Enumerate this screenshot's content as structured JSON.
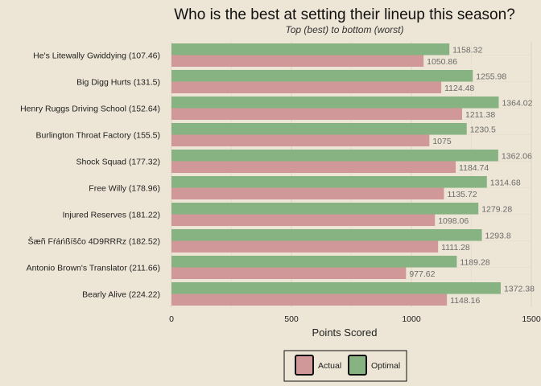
{
  "chart_data": {
    "type": "bar",
    "orientation": "horizontal",
    "title": "Who is the best at setting their lineup this season?",
    "subtitle": "Top (best) to bottom (worst)",
    "xlabel": "Points Scored",
    "ylabel": "",
    "xlim": [
      0,
      1500
    ],
    "xticks": [
      0,
      500,
      1000,
      1500
    ],
    "grid": true,
    "legend_position": "bottom",
    "categories": [
      "He's Litewally Gwiddying (107.46)",
      "Big Digg Hurts (131.5)",
      "Henry Ruggs Driving School (152.64)",
      "Burlington Throat Factory (155.5)",
      "Shock Squad (177.32)",
      "Free Willy (178.96)",
      "Injured Reserves (181.22)",
      "Šæñ Fŕáńßíšĉo 4D9RRRz (182.52)",
      "Antonio Brown's Translator (211.66)",
      "Bearly Alive (224.22)"
    ],
    "series": [
      {
        "name": "Optimal",
        "color": "#86b381",
        "values": [
          1158.32,
          1255.98,
          1364.02,
          1230.5,
          1362.06,
          1314.68,
          1279.28,
          1293.8,
          1189.28,
          1372.38
        ]
      },
      {
        "name": "Actual",
        "color": "#d09898",
        "values": [
          1050.86,
          1124.48,
          1211.38,
          1075,
          1184.74,
          1135.72,
          1098.06,
          1111.28,
          977.62,
          1148.16
        ]
      }
    ],
    "legend": [
      "Actual",
      "Optimal"
    ]
  }
}
